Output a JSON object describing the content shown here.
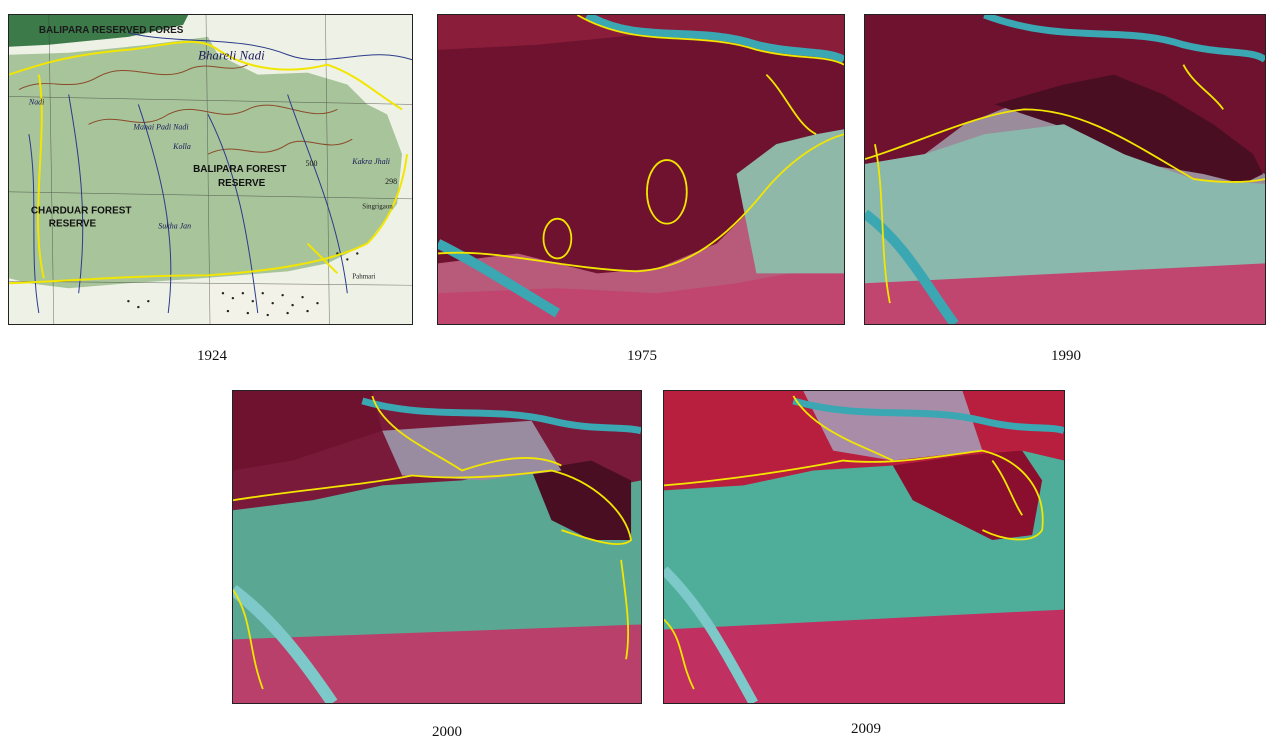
{
  "figure": {
    "panels": [
      {
        "id": "p1924",
        "caption": "1924",
        "type": "topographic map",
        "labels": {
          "reserve_top": "BALIPARA RESERVED FORES",
          "river": "Bhareli Nadi",
          "balipara_line1": "BALIPARA FOREST",
          "balipara_line2": "RESERVE",
          "charduar_line1": "CHARDUAR FOREST",
          "charduar_line2": "RESERVE",
          "stream_nadi": "Nadi",
          "stream_manai": "Manai Padi Nadi",
          "stream_kolla": "Kolla",
          "stream_sukha": "Sukha Jan",
          "stream_kakra": "Kakra Jhali",
          "elevation_500": "500",
          "elevation_298": "298",
          "village_singri": "Singrigaon",
          "village_pahmari": "Pahmari"
        }
      },
      {
        "id": "p1975",
        "caption": "1975",
        "type": "satellite image"
      },
      {
        "id": "p1990",
        "caption": "1990",
        "type": "satellite image"
      },
      {
        "id": "p2000",
        "caption": "2000",
        "type": "satellite image"
      },
      {
        "id": "p2009",
        "caption": "2009",
        "type": "satellite image"
      }
    ],
    "colors": {
      "boundary": "#f2e600",
      "forest": "#7a1430",
      "cleared": "#4fae9a",
      "river": "#3aa7b3",
      "map_land": "#a8c49a",
      "map_paper": "#eef2e6"
    }
  }
}
